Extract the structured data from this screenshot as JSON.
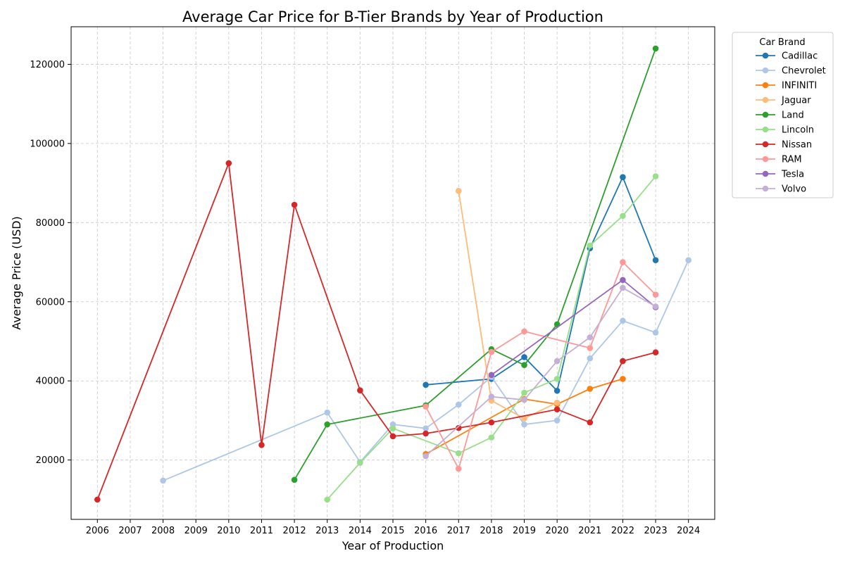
{
  "chart_data": {
    "type": "line",
    "title": "Average Car Price for B-Tier Brands by Year of Production",
    "xlabel": "Year of Production",
    "ylabel": "Average Price (USD)",
    "xlim": [
      2005.2,
      2024.8
    ],
    "ylim": [
      5000,
      129500
    ],
    "x_ticks": [
      2006,
      2007,
      2008,
      2009,
      2010,
      2011,
      2012,
      2013,
      2014,
      2015,
      2016,
      2017,
      2018,
      2019,
      2020,
      2021,
      2022,
      2023,
      2024
    ],
    "y_ticks": [
      20000,
      40000,
      60000,
      80000,
      100000,
      120000
    ],
    "grid": true,
    "legend": {
      "title": "Car Brand",
      "placement": "outside-top-right"
    },
    "series": [
      {
        "name": "Cadillac",
        "color": "#1f77b4",
        "points": [
          [
            2016,
            39000
          ],
          [
            2018,
            40500
          ],
          [
            2019,
            46000
          ],
          [
            2020,
            37500
          ],
          [
            2021,
            73500
          ],
          [
            2022,
            91500
          ],
          [
            2023,
            70500
          ]
        ]
      },
      {
        "name": "Chevrolet",
        "color": "#aec7e8",
        "points": [
          [
            2008,
            14800
          ],
          [
            2013,
            32000
          ],
          [
            2014,
            19500
          ],
          [
            2015,
            29000
          ],
          [
            2016,
            28000
          ],
          [
            2017,
            34000
          ],
          [
            2018,
            41000
          ],
          [
            2019,
            29000
          ],
          [
            2020,
            30000
          ],
          [
            2021,
            45700
          ],
          [
            2022,
            55200
          ],
          [
            2023,
            52200
          ],
          [
            2024,
            70500
          ]
        ]
      },
      {
        "name": "INFINITI",
        "color": "#ff7f0e",
        "points": [
          [
            2016,
            21500
          ],
          [
            2019,
            35400
          ],
          [
            2020,
            34100
          ],
          [
            2021,
            38000
          ],
          [
            2022,
            40500
          ]
        ]
      },
      {
        "name": "Jaguar",
        "color": "#ffbb78",
        "points": [
          [
            2017,
            88000
          ],
          [
            2018,
            35000
          ],
          [
            2019,
            30500
          ],
          [
            2020,
            34500
          ]
        ]
      },
      {
        "name": "Land",
        "color": "#2ca02c",
        "points": [
          [
            2012,
            15000
          ],
          [
            2013,
            29000
          ],
          [
            2016,
            33800
          ],
          [
            2018,
            48000
          ],
          [
            2019,
            44000
          ],
          [
            2020,
            54300
          ],
          [
            2023,
            124000
          ]
        ]
      },
      {
        "name": "Lincoln",
        "color": "#98df8a",
        "points": [
          [
            2013,
            10000
          ],
          [
            2014,
            19300
          ],
          [
            2015,
            28000
          ],
          [
            2017,
            21700
          ],
          [
            2018,
            25700
          ],
          [
            2019,
            37000
          ],
          [
            2020,
            40500
          ],
          [
            2021,
            74200
          ],
          [
            2022,
            81700
          ],
          [
            2023,
            91700
          ]
        ]
      },
      {
        "name": "Nissan",
        "color": "#d62728",
        "points": [
          [
            2006,
            10000
          ],
          [
            2010,
            95000
          ],
          [
            2011,
            23800
          ],
          [
            2012,
            84500
          ],
          [
            2014,
            37600
          ],
          [
            2015,
            26000
          ],
          [
            2016,
            26700
          ],
          [
            2017,
            28100
          ],
          [
            2018,
            29500
          ],
          [
            2020,
            32800
          ],
          [
            2021,
            29500
          ],
          [
            2022,
            45000
          ],
          [
            2023,
            47200
          ]
        ]
      },
      {
        "name": "RAM",
        "color": "#ff9896",
        "points": [
          [
            2016,
            33500
          ],
          [
            2017,
            17800
          ],
          [
            2018,
            47300
          ],
          [
            2019,
            52500
          ],
          [
            2021,
            48300
          ],
          [
            2022,
            70000
          ],
          [
            2023,
            61800
          ]
        ]
      },
      {
        "name": "Tesla",
        "color": "#9467bd",
        "points": [
          [
            2018,
            41500
          ],
          [
            2022,
            65500
          ],
          [
            2023,
            58600
          ]
        ]
      },
      {
        "name": "Volvo",
        "color": "#c5b0d5",
        "points": [
          [
            2016,
            21000
          ],
          [
            2018,
            36000
          ],
          [
            2019,
            35200
          ],
          [
            2020,
            45000
          ],
          [
            2021,
            51000
          ],
          [
            2022,
            63500
          ],
          [
            2023,
            58800
          ]
        ]
      }
    ]
  }
}
